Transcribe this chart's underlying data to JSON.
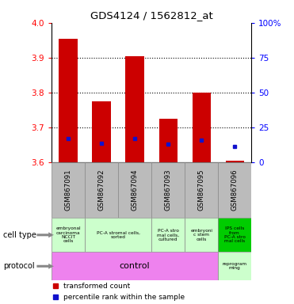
{
  "title": "GDS4124 / 1562812_at",
  "samples": [
    "GSM867091",
    "GSM867092",
    "GSM867094",
    "GSM867093",
    "GSM867095",
    "GSM867096"
  ],
  "bar_bottoms": [
    3.6,
    3.6,
    3.6,
    3.6,
    3.6,
    3.6
  ],
  "bar_tops": [
    3.955,
    3.775,
    3.905,
    3.725,
    3.8,
    3.605
  ],
  "blue_y": [
    3.668,
    3.655,
    3.668,
    3.652,
    3.663,
    3.645
  ],
  "ylim": [
    3.6,
    4.0
  ],
  "yticks": [
    3.6,
    3.7,
    3.8,
    3.9,
    4.0
  ],
  "right_yticks": [
    0,
    25,
    50,
    75,
    100
  ],
  "bar_color": "#cc0000",
  "blue_color": "#1111cc",
  "bar_width": 0.55,
  "ct_groups": [
    {
      "start": 0,
      "end": 1,
      "text": "embryonal\ncarcinoma\nNCCIT\ncells",
      "color": "#ccffcc"
    },
    {
      "start": 1,
      "end": 3,
      "text": "PC-A stromal cells,\nsorted",
      "color": "#ccffcc"
    },
    {
      "start": 3,
      "end": 4,
      "text": "PC-A stro\nmal cells,\ncultured",
      "color": "#ccffcc"
    },
    {
      "start": 4,
      "end": 5,
      "text": "embryoni\nc stem\ncells",
      "color": "#ccffcc"
    },
    {
      "start": 5,
      "end": 6,
      "text": "IPS cells\nfrom\nPC-A stro\nmal cells",
      "color": "#00cc00"
    }
  ],
  "protocol_color": "#ee82ee",
  "reprogram_color": "#ccffcc",
  "sample_bg": "#bbbbbb",
  "legend_red": "transformed count",
  "legend_blue": "percentile rank within the sample",
  "cell_type_label": "cell type",
  "protocol_label_text": "protocol"
}
